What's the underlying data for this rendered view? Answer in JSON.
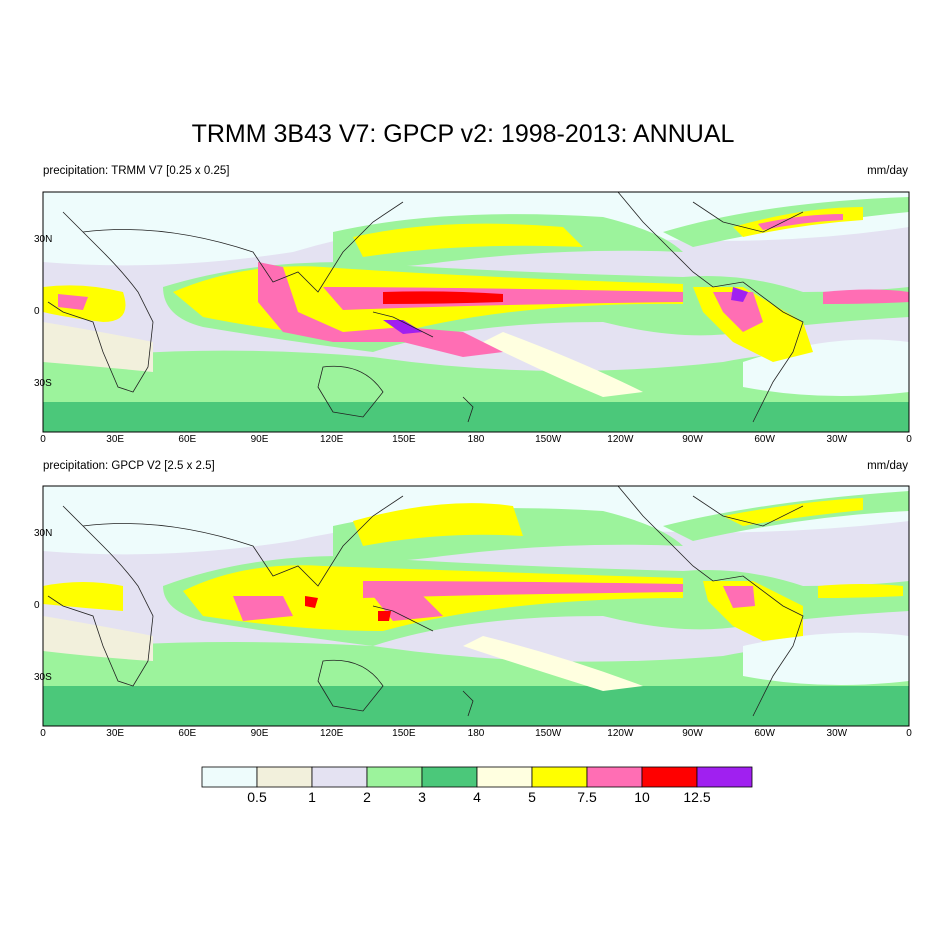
{
  "title": "TRMM 3B43 V7: GPCP v2: 1998-2013: ANNUAL",
  "panels": [
    {
      "label_left": "precipitation: TRMM V7 [0.25 x 0.25]",
      "label_right": "mm/day"
    },
    {
      "label_left": "precipitation: GPCP V2 [2.5 x 2.5]",
      "label_right": "mm/day"
    }
  ],
  "longitude_ticks": [
    "0",
    "30E",
    "60E",
    "90E",
    "120E",
    "150E",
    "180",
    "150W",
    "120W",
    "90W",
    "60W",
    "30W",
    "0"
  ],
  "latitude_ticks": [
    "30N",
    "0",
    "30S"
  ],
  "colorbar": {
    "colors": [
      "#eefcfc",
      "#f2f0dc",
      "#e4e2f2",
      "#9cf39c",
      "#4bc87a",
      "#ffffe0",
      "#ffff00",
      "#ff6eb4",
      "#ff0000",
      "#a020f0"
    ],
    "labels": [
      "0.5",
      "1",
      "2",
      "3",
      "4",
      "5",
      "7.5",
      "10",
      "12.5"
    ]
  }
}
